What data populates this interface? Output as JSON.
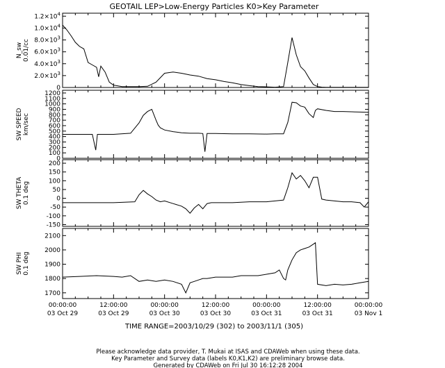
{
  "title": "GEOTAIL  LEP>Low-Energy Particles  K0>Key Parameter",
  "time_range": "TIME RANGE=2003/10/29 (302) to 2003/11/1 (305)",
  "footer": [
    "Please acknowledge data provider, T. Mukai at ISAS and CDAWeb when using these data.",
    "Key Parameter and Survey data (labels K0,K1,K2) are preliminary browse data.",
    "Generated by CDAWeb on Fri Jul 30 16:12:28 2004"
  ],
  "x_axis": {
    "tick_times": [
      "00:00:00",
      "12:00:00",
      "00:00:00",
      "12:00:00",
      "00:00:00",
      "12:00:00",
      "00:00:00"
    ],
    "tick_dates": [
      "03 Oct 29",
      "03 Oct 29",
      "03 Oct 30",
      "03 Oct 30",
      "03 Oct 31",
      "03 Oct 31",
      "03 Nov  1"
    ]
  },
  "chart_data": [
    {
      "type": "line",
      "ylabel": [
        "N_sw",
        "0.01/cc"
      ],
      "ylim": [
        0,
        12500
      ],
      "ytick_values": [
        0,
        2000,
        4000,
        6000,
        8000,
        10000,
        12000
      ],
      "ytick_labels": [
        {
          "base": "0",
          "exp": ""
        },
        {
          "base": "2.0×10",
          "exp": "3"
        },
        {
          "base": "4.0×10",
          "exp": "3"
        },
        {
          "base": "6.0×10",
          "exp": "3"
        },
        {
          "base": "8.0×10",
          "exp": "3"
        },
        {
          "base": "1.0×10",
          "exp": "4"
        },
        {
          "base": "1.2×10",
          "exp": "4"
        }
      ],
      "x_hours": [
        0,
        1,
        2,
        3,
        4,
        5,
        6,
        7,
        8,
        8.5,
        9,
        10,
        11,
        12,
        14,
        16,
        18,
        20,
        22,
        24,
        26,
        28,
        30,
        32,
        34,
        36,
        38,
        40,
        42,
        44,
        46,
        48,
        50,
        52,
        53,
        54,
        55,
        56,
        57,
        58,
        59,
        60,
        61,
        62,
        64,
        66,
        68,
        70,
        72
      ],
      "values": [
        10500,
        9700,
        8700,
        7600,
        6900,
        6500,
        4200,
        3800,
        3400,
        1800,
        3600,
        2600,
        900,
        400,
        150,
        150,
        150,
        200,
        900,
        2400,
        2600,
        2400,
        2100,
        1900,
        1500,
        1300,
        1000,
        800,
        500,
        300,
        150,
        100,
        50,
        150,
        4200,
        8400,
        5500,
        3500,
        2800,
        1600,
        500,
        150,
        60,
        40,
        40,
        30,
        30,
        30,
        30
      ]
    },
    {
      "type": "line",
      "ylabel": [
        "SW SPEED",
        "km/sec"
      ],
      "ylim": [
        0,
        1250
      ],
      "ytick_values": [
        0,
        100,
        200,
        300,
        400,
        500,
        600,
        700,
        800,
        900,
        1000,
        1100,
        1200
      ],
      "ytick_labels": [
        "0",
        "100",
        "200",
        "300",
        "400",
        "500",
        "600",
        "700",
        "800",
        "900",
        "1000",
        "1100",
        "1200"
      ],
      "x_hours": [
        0,
        4,
        7,
        7.8,
        8.2,
        12,
        16,
        18,
        19,
        20,
        21,
        22,
        22.5,
        23,
        24,
        26,
        28,
        30,
        32,
        33,
        33.5,
        34,
        36,
        40,
        44,
        48,
        50,
        52,
        53,
        54,
        55,
        56,
        57,
        58,
        59,
        59.5,
        60,
        62,
        64,
        66,
        68,
        70,
        72
      ],
      "values": [
        440,
        440,
        440,
        150,
        440,
        440,
        460,
        650,
        790,
        860,
        900,
        700,
        610,
        560,
        520,
        490,
        470,
        460,
        460,
        455,
        120,
        455,
        455,
        450,
        450,
        445,
        450,
        450,
        660,
        1030,
        1020,
        960,
        940,
        820,
        750,
        880,
        910,
        880,
        860,
        860,
        855,
        850,
        845
      ]
    },
    {
      "type": "line",
      "ylabel": [
        "SW THETA",
        "0.1 deg"
      ],
      "ylim": [
        -160,
        220
      ],
      "ytick_values": [
        -150,
        -100,
        -50,
        0,
        50,
        100,
        150,
        200
      ],
      "ytick_labels": [
        "-150",
        "-100",
        "-50",
        "0",
        "50",
        "100",
        "150",
        "200"
      ],
      "x_hours": [
        0,
        6,
        12,
        17,
        18,
        19,
        20,
        21,
        22,
        23,
        24,
        26,
        28,
        29,
        30,
        31,
        32,
        33,
        34,
        35,
        36,
        38,
        40,
        44,
        48,
        50,
        52,
        53,
        54,
        55,
        56,
        57,
        58,
        59,
        60,
        61,
        62,
        64,
        66,
        68,
        70,
        71,
        72
      ],
      "values": [
        -25,
        -25,
        -25,
        -20,
        20,
        45,
        25,
        10,
        -10,
        -20,
        -15,
        -30,
        -45,
        -60,
        -85,
        -55,
        -35,
        -60,
        -30,
        -25,
        -25,
        -25,
        -25,
        -20,
        -20,
        -15,
        -10,
        60,
        145,
        110,
        130,
        100,
        60,
        120,
        120,
        -5,
        -10,
        -15,
        -20,
        -20,
        -25,
        -50,
        -20
      ]
    },
    {
      "type": "line",
      "ylabel": [
        "SW PHI",
        "0.1 deg"
      ],
      "ylim": [
        1660,
        2150
      ],
      "ytick_values": [
        1700,
        1800,
        1900,
        2000,
        2100
      ],
      "ytick_labels": [
        "1700",
        "1800",
        "1900",
        "2000",
        "2100"
      ],
      "x_hours": [
        0,
        4,
        8,
        12,
        14,
        16,
        18,
        20,
        22,
        24,
        26,
        28,
        29,
        30,
        31,
        32,
        33,
        34,
        36,
        38,
        40,
        42,
        44,
        46,
        48,
        50,
        51,
        52,
        52.5,
        53,
        54,
        55,
        56,
        57,
        58,
        59,
        59.5,
        60,
        62,
        64,
        66,
        68,
        70,
        72
      ],
      "values": [
        1810,
        1815,
        1820,
        1815,
        1810,
        1820,
        1780,
        1790,
        1780,
        1790,
        1780,
        1760,
        1700,
        1770,
        1780,
        1790,
        1800,
        1800,
        1810,
        1810,
        1810,
        1820,
        1820,
        1820,
        1830,
        1840,
        1860,
        1800,
        1790,
        1860,
        1930,
        1980,
        2000,
        2010,
        2020,
        2040,
        2050,
        1760,
        1750,
        1760,
        1755,
        1760,
        1770,
        1780
      ]
    }
  ]
}
